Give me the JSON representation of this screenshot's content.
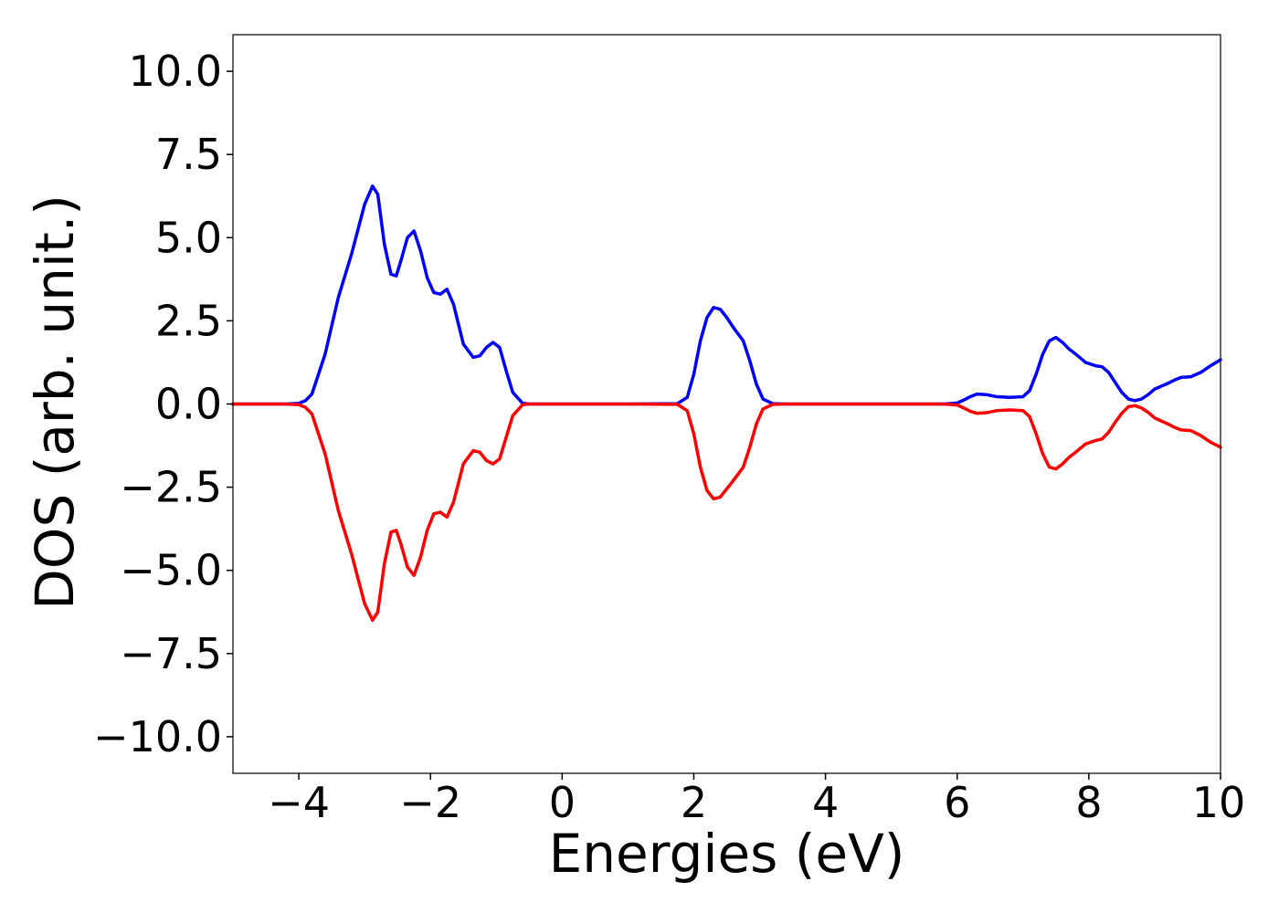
{
  "chart_data": {
    "type": "line",
    "title": "",
    "xlabel": "Energies (eV)",
    "ylabel": "DOS (arb. unit.)",
    "xlim": [
      -5,
      10
    ],
    "ylim": [
      -11.1,
      11.1
    ],
    "grid": false,
    "legend": "none",
    "x_ticks": [
      -4,
      -2,
      0,
      2,
      4,
      6,
      8,
      10
    ],
    "x_tick_labels": [
      "−4",
      "−2",
      "0",
      "2",
      "4",
      "6",
      "8",
      "10"
    ],
    "y_ticks": [
      10,
      7.5,
      5,
      2.5,
      0,
      -2.5,
      -5,
      -7.5,
      -10
    ],
    "y_tick_labels": [
      "10.0",
      "7.5",
      "5.0",
      "2.5",
      "0.0",
      "−2.5",
      "−5.0",
      "−7.5",
      "−10.0"
    ],
    "series": [
      {
        "color": "#0000ff",
        "x": [
          -5.0,
          -4.2,
          -4.0,
          -3.9,
          -3.8,
          -3.6,
          -3.4,
          -3.2,
          -3.0,
          -2.88,
          -2.8,
          -2.7,
          -2.6,
          -2.52,
          -2.45,
          -2.35,
          -2.25,
          -2.15,
          -2.05,
          -1.95,
          -1.85,
          -1.75,
          -1.65,
          -1.5,
          -1.35,
          -1.25,
          -1.15,
          -1.05,
          -0.95,
          -0.85,
          -0.75,
          -0.6,
          -0.5,
          0.0,
          1.0,
          1.75,
          1.9,
          2.0,
          2.1,
          2.2,
          2.3,
          2.4,
          2.5,
          2.6,
          2.75,
          2.85,
          2.95,
          3.05,
          3.2,
          3.4,
          5.0,
          5.8,
          6.0,
          6.1,
          6.2,
          6.3,
          6.45,
          6.6,
          6.8,
          7.0,
          7.1,
          7.2,
          7.3,
          7.4,
          7.5,
          7.6,
          7.7,
          7.8,
          7.95,
          8.1,
          8.2,
          8.3,
          8.4,
          8.5,
          8.6,
          8.7,
          8.8,
          8.9,
          9.0,
          9.2,
          9.3,
          9.4,
          9.55,
          9.7,
          9.85,
          10.0
        ],
        "values": [
          0,
          0,
          0.02,
          0.1,
          0.3,
          1.5,
          3.2,
          4.5,
          6.0,
          6.55,
          6.3,
          4.8,
          3.9,
          3.85,
          4.3,
          5.0,
          5.2,
          4.6,
          3.8,
          3.35,
          3.3,
          3.45,
          3.0,
          1.8,
          1.4,
          1.45,
          1.7,
          1.85,
          1.7,
          1.0,
          0.35,
          0.02,
          0,
          0,
          0,
          0.01,
          0.2,
          0.9,
          1.9,
          2.6,
          2.9,
          2.85,
          2.6,
          2.3,
          1.9,
          1.3,
          0.6,
          0.15,
          0.01,
          0,
          0,
          0,
          0.03,
          0.12,
          0.22,
          0.3,
          0.28,
          0.22,
          0.2,
          0.22,
          0.4,
          0.9,
          1.5,
          1.9,
          2.0,
          1.85,
          1.65,
          1.5,
          1.25,
          1.15,
          1.12,
          0.95,
          0.65,
          0.35,
          0.15,
          0.1,
          0.15,
          0.28,
          0.45,
          0.62,
          0.72,
          0.8,
          0.82,
          0.95,
          1.15,
          1.33
        ]
      },
      {
        "color": "#ff0000",
        "x": [
          -5.0,
          -4.2,
          -4.0,
          -3.9,
          -3.8,
          -3.6,
          -3.4,
          -3.2,
          -3.0,
          -2.88,
          -2.8,
          -2.7,
          -2.6,
          -2.52,
          -2.45,
          -2.35,
          -2.25,
          -2.15,
          -2.05,
          -1.95,
          -1.85,
          -1.75,
          -1.65,
          -1.5,
          -1.35,
          -1.25,
          -1.15,
          -1.05,
          -0.95,
          -0.85,
          -0.75,
          -0.6,
          -0.5,
          0.0,
          1.0,
          1.75,
          1.9,
          2.0,
          2.1,
          2.2,
          2.3,
          2.4,
          2.5,
          2.6,
          2.75,
          2.85,
          2.95,
          3.05,
          3.2,
          3.4,
          5.0,
          5.8,
          6.0,
          6.1,
          6.2,
          6.3,
          6.45,
          6.6,
          6.8,
          7.0,
          7.1,
          7.2,
          7.3,
          7.4,
          7.5,
          7.6,
          7.7,
          7.8,
          7.95,
          8.1,
          8.2,
          8.3,
          8.4,
          8.5,
          8.6,
          8.7,
          8.8,
          8.9,
          9.0,
          9.2,
          9.3,
          9.4,
          9.55,
          9.7,
          9.85,
          10.0
        ],
        "values": [
          0,
          0,
          -0.02,
          -0.1,
          -0.3,
          -1.5,
          -3.2,
          -4.5,
          -6.0,
          -6.5,
          -6.25,
          -4.8,
          -3.85,
          -3.8,
          -4.2,
          -4.9,
          -5.15,
          -4.6,
          -3.8,
          -3.3,
          -3.25,
          -3.4,
          -2.95,
          -1.8,
          -1.4,
          -1.45,
          -1.7,
          -1.8,
          -1.65,
          -1.0,
          -0.35,
          -0.02,
          0,
          0,
          0,
          -0.01,
          -0.2,
          -0.9,
          -1.9,
          -2.6,
          -2.85,
          -2.8,
          -2.55,
          -2.3,
          -1.9,
          -1.3,
          -0.6,
          -0.15,
          -0.01,
          0,
          0,
          0,
          -0.03,
          -0.12,
          -0.22,
          -0.28,
          -0.26,
          -0.2,
          -0.18,
          -0.2,
          -0.38,
          -0.9,
          -1.5,
          -1.9,
          -1.95,
          -1.8,
          -1.6,
          -1.45,
          -1.2,
          -1.1,
          -1.05,
          -0.85,
          -0.55,
          -0.28,
          -0.08,
          -0.05,
          -0.12,
          -0.25,
          -0.42,
          -0.6,
          -0.7,
          -0.78,
          -0.8,
          -0.95,
          -1.15,
          -1.3
        ]
      }
    ]
  }
}
